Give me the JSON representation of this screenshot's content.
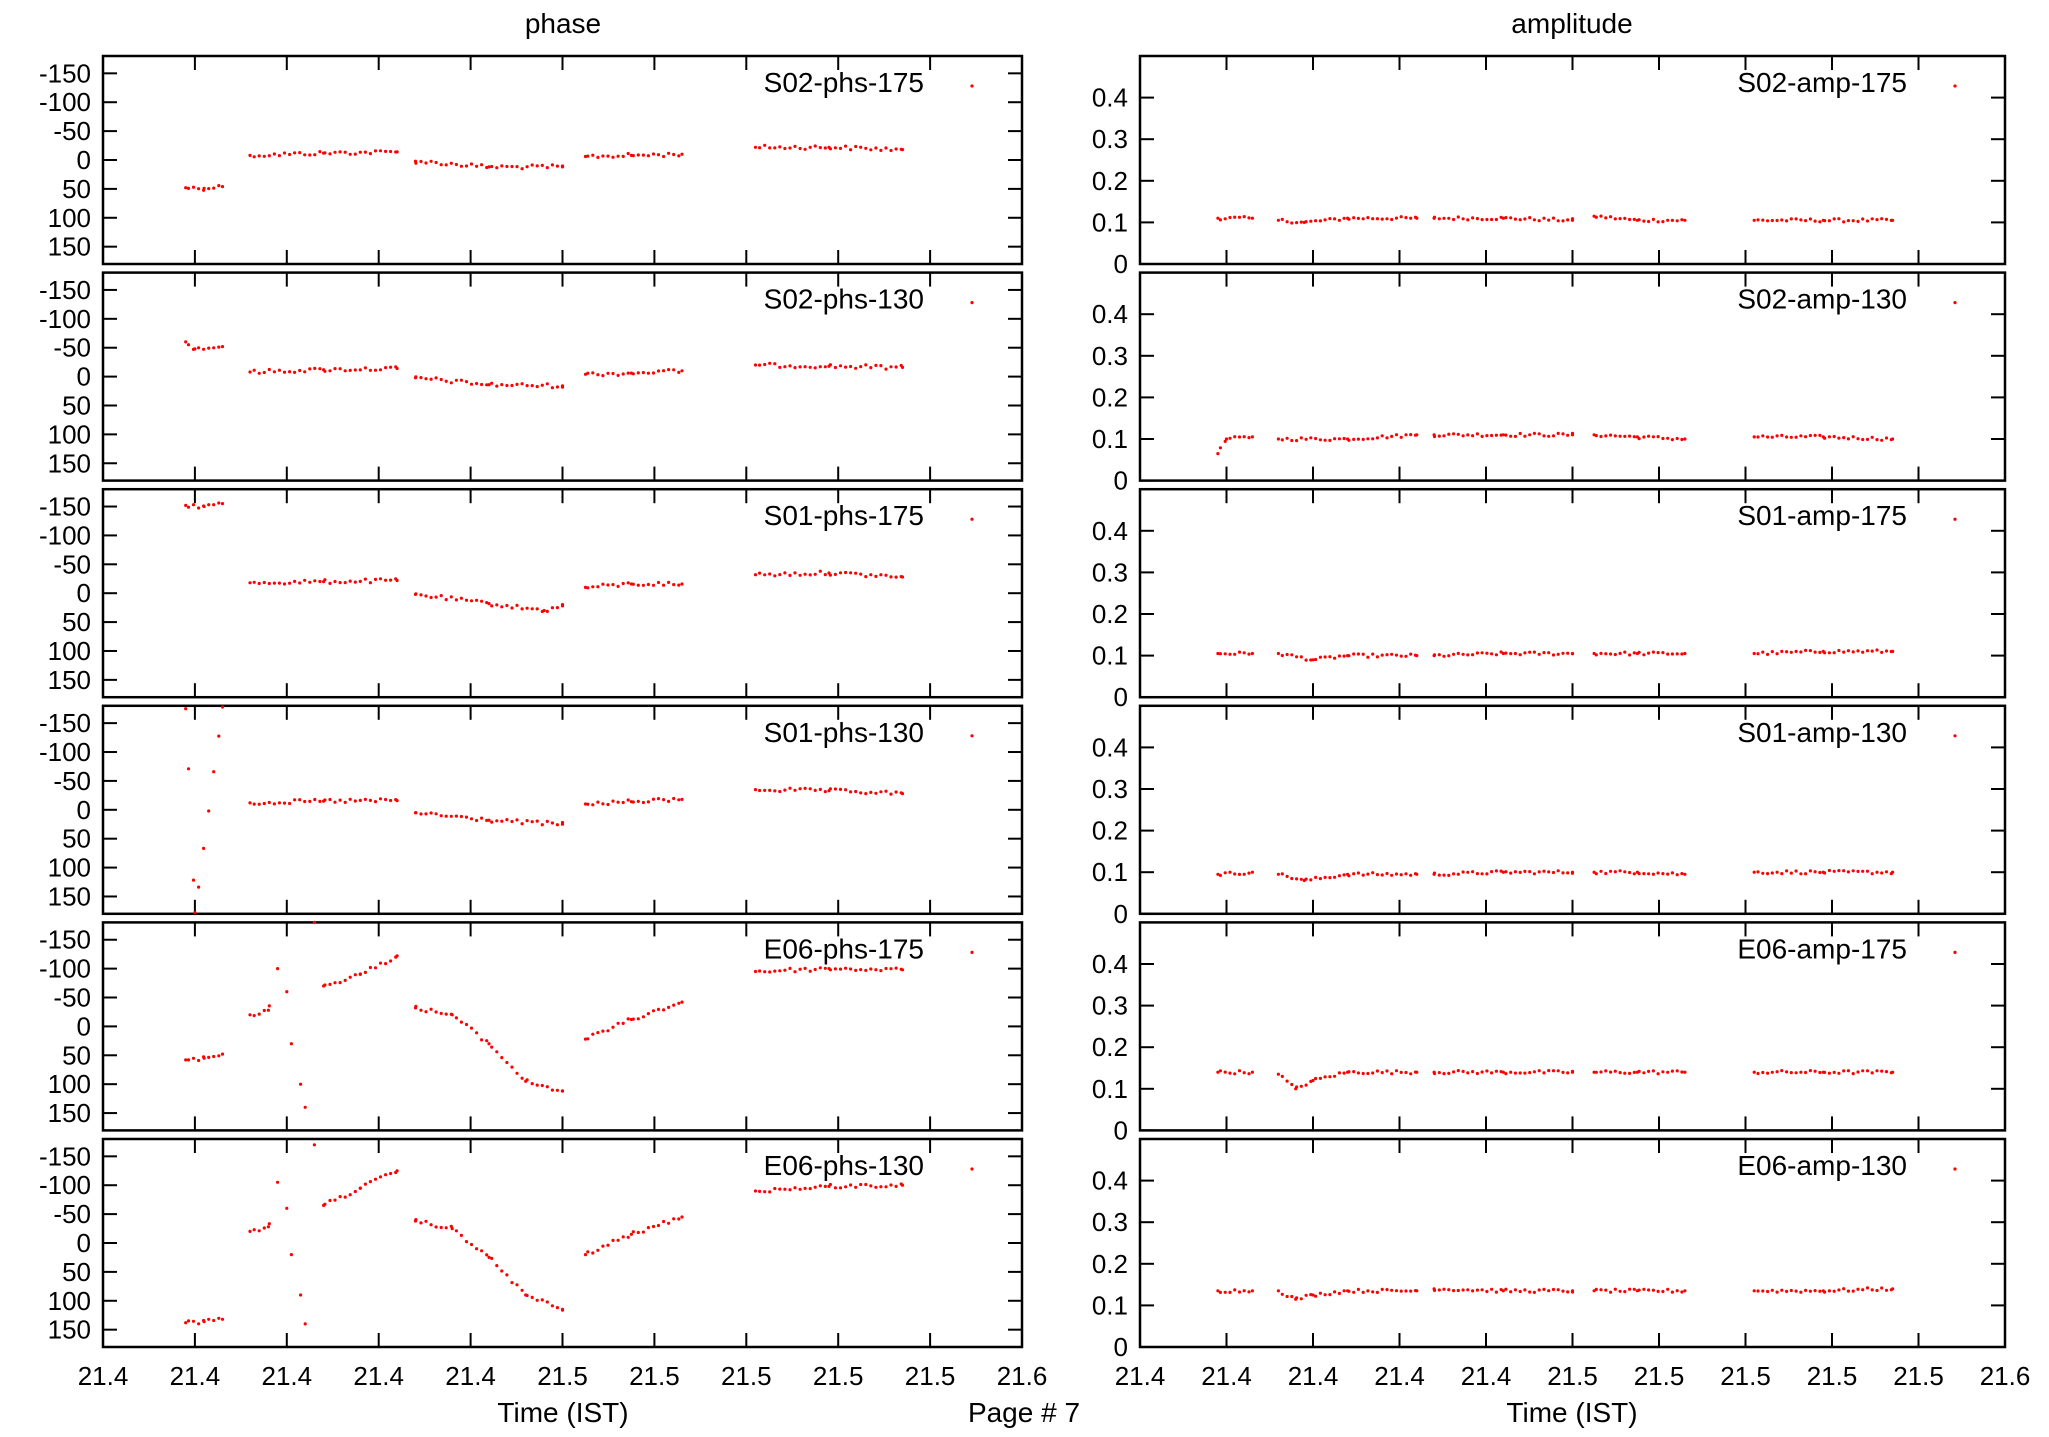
{
  "page": {
    "label": "Page # 7"
  },
  "colors": {
    "marker": "#ff0000"
  },
  "chart_data": {
    "type": "scatter",
    "grid": false,
    "legend_placement": "top-right",
    "column_titles": [
      "phase",
      "amplitude"
    ],
    "xlabel": "Time (IST)",
    "x_ticks": [
      "21.4",
      "21.4",
      "21.4",
      "21.4",
      "21.4",
      "21.5",
      "21.5",
      "21.5",
      "21.5",
      "21.5",
      "21.6"
    ],
    "x_range": [
      21.4,
      21.6
    ],
    "phase_axis": {
      "range": [
        -180,
        180
      ],
      "reversed": true,
      "ticks": [
        -150,
        -100,
        -50,
        0,
        50,
        100,
        150
      ],
      "tick_labels": [
        "-150",
        "-100",
        "-50",
        "0",
        "50",
        "100",
        "150"
      ]
    },
    "amp_axis": {
      "range": [
        0,
        0.5
      ],
      "ticks": [
        0,
        0.1,
        0.2,
        0.3,
        0.4
      ],
      "tick_labels": [
        "0",
        "0.1",
        "0.2",
        "0.3",
        "0.4"
      ]
    },
    "segments_x": [
      [
        21.418,
        21.426
      ],
      [
        21.432,
        21.464
      ],
      [
        21.468,
        21.5
      ],
      [
        21.505,
        21.526
      ],
      [
        21.542,
        21.574
      ]
    ],
    "phase_panels": [
      {
        "name": "S02-phs-175",
        "points": [
          [
            21.418,
            48
          ],
          [
            21.422,
            49
          ],
          [
            21.426,
            46
          ],
          [
            21.432,
            -8
          ],
          [
            21.448,
            -12
          ],
          [
            21.464,
            -14
          ],
          [
            21.468,
            2
          ],
          [
            21.484,
            12
          ],
          [
            21.5,
            12
          ],
          [
            21.505,
            -6
          ],
          [
            21.515,
            -8
          ],
          [
            21.526,
            -10
          ],
          [
            21.542,
            -22
          ],
          [
            21.558,
            -22
          ],
          [
            21.574,
            -18
          ]
        ]
      },
      {
        "name": "S02-phs-130",
        "points": [
          [
            21.418,
            -60
          ],
          [
            21.42,
            -48
          ],
          [
            21.426,
            -52
          ],
          [
            21.432,
            -8
          ],
          [
            21.448,
            -12
          ],
          [
            21.464,
            -14
          ],
          [
            21.468,
            2
          ],
          [
            21.484,
            14
          ],
          [
            21.5,
            16
          ],
          [
            21.505,
            -4
          ],
          [
            21.515,
            -6
          ],
          [
            21.526,
            -10
          ],
          [
            21.542,
            -20
          ],
          [
            21.558,
            -18
          ],
          [
            21.574,
            -16
          ]
        ]
      },
      {
        "name": "S01-phs-175",
        "points": [
          [
            21.418,
            -152
          ],
          [
            21.422,
            -150
          ],
          [
            21.426,
            -155
          ],
          [
            21.432,
            -18
          ],
          [
            21.448,
            -20
          ],
          [
            21.464,
            -22
          ],
          [
            21.468,
            2
          ],
          [
            21.484,
            18
          ],
          [
            21.496,
            30
          ],
          [
            21.5,
            22
          ],
          [
            21.505,
            -10
          ],
          [
            21.515,
            -16
          ],
          [
            21.526,
            -16
          ],
          [
            21.542,
            -32
          ],
          [
            21.558,
            -35
          ],
          [
            21.574,
            -28
          ]
        ]
      },
      {
        "name": "S01-phs-130",
        "points": [
          [
            21.418,
            -175
          ],
          [
            21.42,
            178
          ],
          [
            21.426,
            -178
          ],
          [
            21.432,
            -12
          ],
          [
            21.448,
            -15
          ],
          [
            21.464,
            -16
          ],
          [
            21.468,
            5
          ],
          [
            21.484,
            18
          ],
          [
            21.5,
            25
          ],
          [
            21.505,
            -10
          ],
          [
            21.515,
            -14
          ],
          [
            21.526,
            -18
          ],
          [
            21.542,
            -35
          ],
          [
            21.558,
            -33
          ],
          [
            21.574,
            -28
          ]
        ]
      },
      {
        "name": "E06-phs-175",
        "points": [
          [
            21.418,
            58
          ],
          [
            21.422,
            55
          ],
          [
            21.426,
            48
          ],
          [
            21.432,
            -20
          ],
          [
            21.436,
            -28
          ],
          [
            21.438,
            -100
          ],
          [
            21.44,
            -60
          ],
          [
            21.441,
            30
          ],
          [
            21.443,
            100
          ],
          [
            21.444,
            140
          ],
          [
            21.446,
            -180
          ],
          [
            21.448,
            -70
          ],
          [
            21.456,
            -90
          ],
          [
            21.464,
            -122
          ],
          [
            21.468,
            -32
          ],
          [
            21.476,
            -20
          ],
          [
            21.484,
            30
          ],
          [
            21.492,
            95
          ],
          [
            21.5,
            112
          ],
          [
            21.505,
            22
          ],
          [
            21.515,
            -12
          ],
          [
            21.526,
            -42
          ],
          [
            21.542,
            -95
          ],
          [
            21.558,
            -100
          ],
          [
            21.574,
            -98
          ]
        ]
      },
      {
        "name": "E06-phs-130",
        "points": [
          [
            21.418,
            138
          ],
          [
            21.422,
            136
          ],
          [
            21.426,
            132
          ],
          [
            21.432,
            -20
          ],
          [
            21.436,
            -28
          ],
          [
            21.438,
            -105
          ],
          [
            21.44,
            -60
          ],
          [
            21.441,
            20
          ],
          [
            21.443,
            90
          ],
          [
            21.444,
            140
          ],
          [
            21.446,
            -170
          ],
          [
            21.448,
            -65
          ],
          [
            21.456,
            -95
          ],
          [
            21.464,
            -125
          ],
          [
            21.468,
            -38
          ],
          [
            21.476,
            -25
          ],
          [
            21.484,
            25
          ],
          [
            21.492,
            90
          ],
          [
            21.5,
            115
          ],
          [
            21.505,
            20
          ],
          [
            21.515,
            -15
          ],
          [
            21.526,
            -45
          ],
          [
            21.542,
            -90
          ],
          [
            21.558,
            -98
          ],
          [
            21.574,
            -100
          ]
        ]
      }
    ],
    "amp_panels": [
      {
        "name": "S02-amp-175",
        "points": [
          [
            21.418,
            0.11
          ],
          [
            21.426,
            0.11
          ],
          [
            21.432,
            0.105
          ],
          [
            21.438,
            0.1
          ],
          [
            21.448,
            0.11
          ],
          [
            21.464,
            0.11
          ],
          [
            21.468,
            0.11
          ],
          [
            21.484,
            0.11
          ],
          [
            21.5,
            0.105
          ],
          [
            21.505,
            0.115
          ],
          [
            21.515,
            0.105
          ],
          [
            21.526,
            0.105
          ],
          [
            21.542,
            0.105
          ],
          [
            21.558,
            0.105
          ],
          [
            21.574,
            0.105
          ]
        ]
      },
      {
        "name": "S02-amp-130",
        "points": [
          [
            21.418,
            0.065
          ],
          [
            21.42,
            0.1
          ],
          [
            21.426,
            0.105
          ],
          [
            21.432,
            0.1
          ],
          [
            21.448,
            0.1
          ],
          [
            21.464,
            0.11
          ],
          [
            21.468,
            0.11
          ],
          [
            21.484,
            0.11
          ],
          [
            21.5,
            0.11
          ],
          [
            21.505,
            0.11
          ],
          [
            21.515,
            0.105
          ],
          [
            21.526,
            0.1
          ],
          [
            21.542,
            0.105
          ],
          [
            21.558,
            0.105
          ],
          [
            21.574,
            0.1
          ]
        ]
      },
      {
        "name": "S01-amp-175",
        "points": [
          [
            21.418,
            0.105
          ],
          [
            21.426,
            0.105
          ],
          [
            21.432,
            0.105
          ],
          [
            21.44,
            0.09
          ],
          [
            21.448,
            0.1
          ],
          [
            21.464,
            0.1
          ],
          [
            21.468,
            0.1
          ],
          [
            21.484,
            0.105
          ],
          [
            21.5,
            0.105
          ],
          [
            21.505,
            0.105
          ],
          [
            21.515,
            0.105
          ],
          [
            21.526,
            0.105
          ],
          [
            21.542,
            0.105
          ],
          [
            21.558,
            0.11
          ],
          [
            21.574,
            0.11
          ]
        ]
      },
      {
        "name": "S01-amp-130",
        "points": [
          [
            21.418,
            0.095
          ],
          [
            21.426,
            0.1
          ],
          [
            21.432,
            0.095
          ],
          [
            21.438,
            0.08
          ],
          [
            21.448,
            0.095
          ],
          [
            21.464,
            0.095
          ],
          [
            21.468,
            0.095
          ],
          [
            21.484,
            0.1
          ],
          [
            21.5,
            0.1
          ],
          [
            21.505,
            0.1
          ],
          [
            21.515,
            0.1
          ],
          [
            21.526,
            0.095
          ],
          [
            21.542,
            0.1
          ],
          [
            21.558,
            0.1
          ],
          [
            21.574,
            0.1
          ]
        ]
      },
      {
        "name": "E06-amp-175",
        "points": [
          [
            21.418,
            0.14
          ],
          [
            21.426,
            0.14
          ],
          [
            21.432,
            0.135
          ],
          [
            21.436,
            0.1
          ],
          [
            21.44,
            0.12
          ],
          [
            21.448,
            0.14
          ],
          [
            21.464,
            0.14
          ],
          [
            21.468,
            0.14
          ],
          [
            21.484,
            0.14
          ],
          [
            21.5,
            0.14
          ],
          [
            21.505,
            0.14
          ],
          [
            21.515,
            0.14
          ],
          [
            21.526,
            0.14
          ],
          [
            21.542,
            0.14
          ],
          [
            21.558,
            0.14
          ],
          [
            21.574,
            0.14
          ]
        ]
      },
      {
        "name": "E06-amp-130",
        "points": [
          [
            21.418,
            0.135
          ],
          [
            21.426,
            0.135
          ],
          [
            21.432,
            0.135
          ],
          [
            21.436,
            0.115
          ],
          [
            21.44,
            0.125
          ],
          [
            21.448,
            0.135
          ],
          [
            21.464,
            0.135
          ],
          [
            21.468,
            0.14
          ],
          [
            21.484,
            0.135
          ],
          [
            21.5,
            0.135
          ],
          [
            21.505,
            0.135
          ],
          [
            21.515,
            0.135
          ],
          [
            21.526,
            0.135
          ],
          [
            21.542,
            0.135
          ],
          [
            21.558,
            0.135
          ],
          [
            21.574,
            0.14
          ]
        ]
      }
    ]
  }
}
